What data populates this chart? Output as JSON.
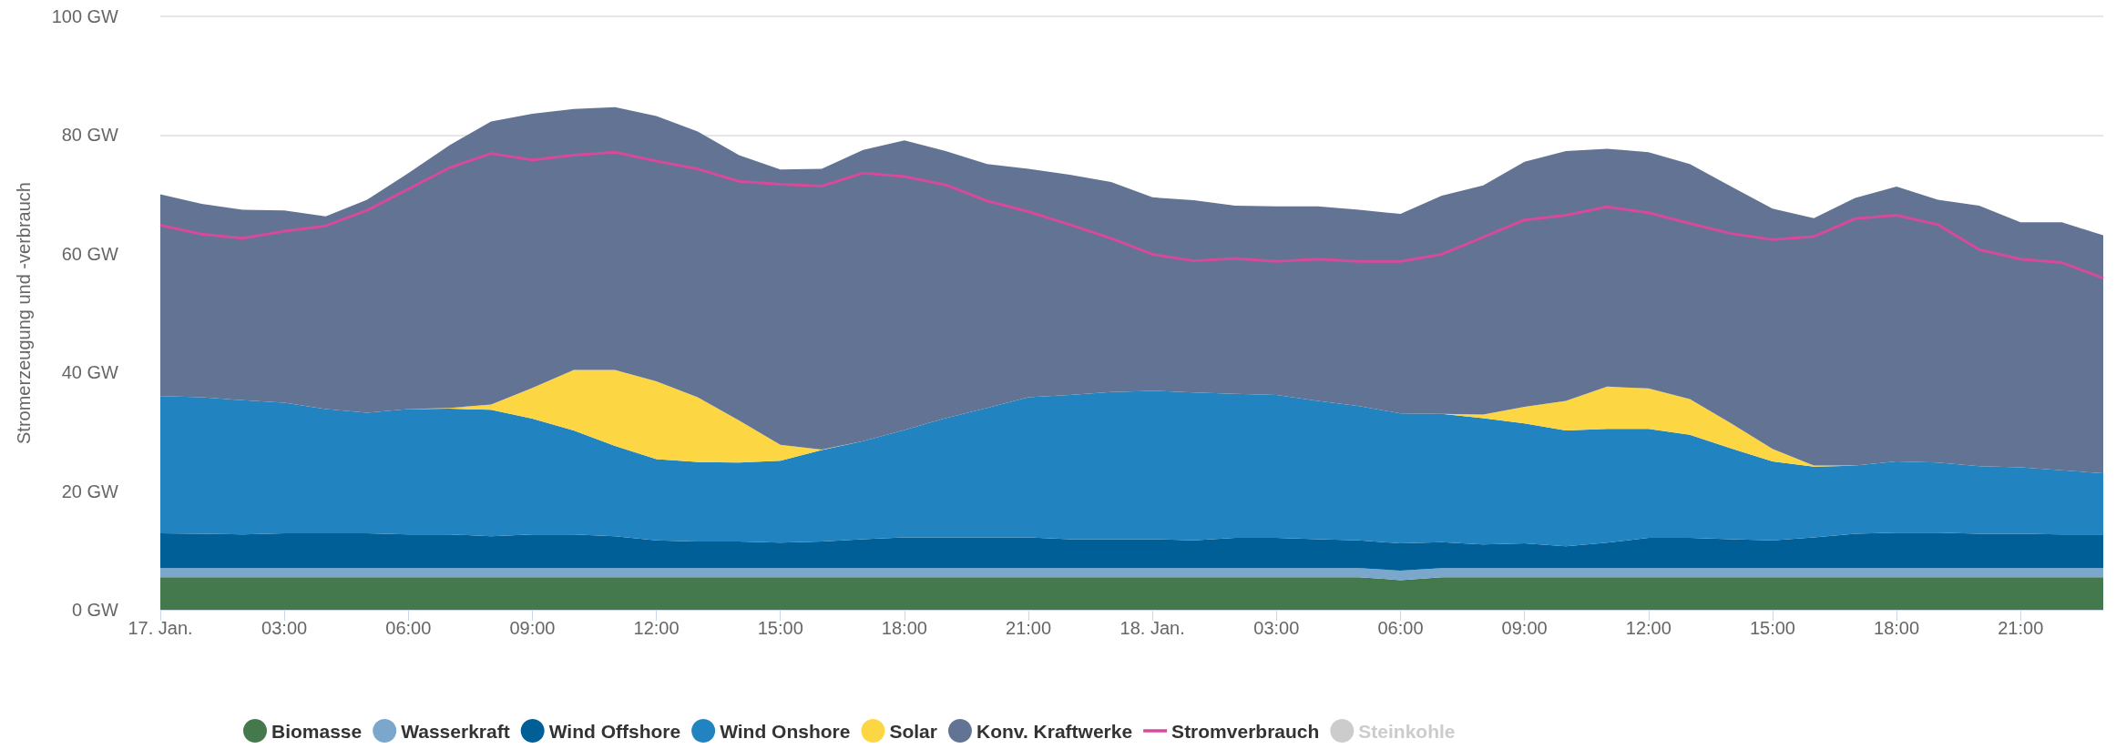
{
  "chart_data": {
    "type": "area",
    "stacked": true,
    "ylabel": "Stromerzeugung und -verbrauch",
    "categories": [
      "17. Jan.",
      null,
      null,
      "03:00",
      null,
      null,
      "06:00",
      null,
      null,
      "09:00",
      null,
      null,
      "12:00",
      null,
      null,
      "15:00",
      null,
      null,
      "18:00",
      null,
      null,
      "21:00",
      null,
      null,
      "18. Jan.",
      null,
      null,
      "03:00",
      null,
      null,
      "06:00",
      null,
      null,
      "09:00",
      null,
      null,
      "12:00",
      null,
      null,
      "15:00",
      null,
      null,
      "18:00",
      null,
      null,
      "21:00",
      null,
      null
    ],
    "ylim": [
      0,
      100
    ],
    "yticks": [
      {
        "value": 0,
        "label": "0 GW"
      },
      {
        "value": 20,
        "label": "20 GW"
      },
      {
        "value": 40,
        "label": "40 GW"
      },
      {
        "value": 60,
        "label": "60 GW"
      },
      {
        "value": 80,
        "label": "80 GW"
      },
      {
        "value": 100,
        "label": "100 GW"
      }
    ],
    "grid": "y",
    "legend": "bottom",
    "marker": "none",
    "series": [
      {
        "name": "Biomasse",
        "color": "#44784d",
        "values": [
          5.5,
          5.5,
          5.5,
          5.5,
          5.5,
          5.5,
          5.5,
          5.5,
          5.5,
          5.5,
          5.5,
          5.5,
          5.5,
          5.5,
          5.5,
          5.5,
          5.5,
          5.5,
          5.5,
          5.5,
          5.5,
          5.5,
          5.5,
          5.5,
          5.5,
          5.5,
          5.5,
          5.5,
          5.5,
          5.5,
          5.0,
          5.5,
          5.5,
          5.5,
          5.5,
          5.5,
          5.5,
          5.5,
          5.5,
          5.5,
          5.5,
          5.5,
          5.5,
          5.5,
          5.5,
          5.5,
          5.5,
          5.5
        ]
      },
      {
        "name": "Wasserkraft",
        "color": "#7ba7cd",
        "values": [
          1.5,
          1.5,
          1.5,
          1.5,
          1.5,
          1.5,
          1.5,
          1.5,
          1.5,
          1.5,
          1.5,
          1.5,
          1.5,
          1.5,
          1.5,
          1.5,
          1.5,
          1.5,
          1.5,
          1.5,
          1.5,
          1.5,
          1.5,
          1.5,
          1.5,
          1.5,
          1.5,
          1.5,
          1.5,
          1.5,
          1.6,
          1.5,
          1.5,
          1.5,
          1.5,
          1.5,
          1.5,
          1.5,
          1.5,
          1.5,
          1.5,
          1.5,
          1.5,
          1.5,
          1.5,
          1.5,
          1.5,
          1.5
        ]
      },
      {
        "name": "Wind Offshore",
        "color": "#015f98",
        "values": [
          5.9,
          5.8,
          5.7,
          5.9,
          5.9,
          5.9,
          5.7,
          5.7,
          5.4,
          5.7,
          5.7,
          5.4,
          4.7,
          4.5,
          4.5,
          4.3,
          4.5,
          4.9,
          5.2,
          5.2,
          5.2,
          5.2,
          4.9,
          4.9,
          4.9,
          4.7,
          5.1,
          5.1,
          4.9,
          4.7,
          4.6,
          4.4,
          4.0,
          4.2,
          3.7,
          4.3,
          5.1,
          5.1,
          4.9,
          4.7,
          5.2,
          5.8,
          6.0,
          6.0,
          5.8,
          5.8,
          5.7,
          5.7
        ]
      },
      {
        "name": "Wind Onshore",
        "color": "#2183c0",
        "values": [
          23.1,
          23.0,
          22.6,
          22.0,
          20.9,
          20.3,
          21.1,
          21.2,
          21.3,
          19.5,
          17.5,
          15.2,
          13.7,
          13.4,
          13.3,
          13.8,
          15.4,
          16.5,
          18.1,
          20.1,
          21.8,
          23.6,
          24.3,
          24.8,
          25.0,
          24.9,
          24.3,
          24.1,
          23.3,
          22.6,
          21.9,
          21.6,
          21.3,
          20.2,
          19.5,
          19.2,
          18.4,
          17.4,
          15.3,
          13.3,
          11.9,
          11.5,
          12.0,
          11.8,
          11.4,
          11.2,
          10.8,
          10.3
        ]
      },
      {
        "name": "Solar",
        "color": "#fdd643",
        "values": [
          0,
          0,
          0,
          0,
          0,
          0,
          0,
          0.1,
          0.9,
          5.2,
          10.2,
          12.8,
          13.1,
          10.9,
          7.1,
          2.7,
          0.1,
          0,
          0,
          0,
          0,
          0,
          0,
          0,
          0,
          0,
          0,
          0,
          0,
          0,
          0,
          0,
          0.6,
          2.8,
          5.0,
          7.1,
          6.8,
          6.0,
          4.2,
          2.1,
          0.2,
          0,
          0,
          0,
          0,
          0,
          0,
          0
        ]
      },
      {
        "name": "Konv. Kraftwerke",
        "color": "#627394",
        "values": [
          34.0,
          32.6,
          32.1,
          32.4,
          32.5,
          35.9,
          39.8,
          44.3,
          47.7,
          46.2,
          44.0,
          44.3,
          44.7,
          44.8,
          44.7,
          46.4,
          47.3,
          49.1,
          48.8,
          45.0,
          41.1,
          38.5,
          37.1,
          35.4,
          32.6,
          32.4,
          31.7,
          31.8,
          32.8,
          33.1,
          33.6,
          36.8,
          38.6,
          41.3,
          42.1,
          40.1,
          39.8,
          39.6,
          39.9,
          40.5,
          41.7,
          45.1,
          46.3,
          44.3,
          43.9,
          41.3,
          41.8,
          40.1
        ]
      },
      {
        "name": "Stromverbrauch",
        "type": "line",
        "color": "#d64a9a",
        "values": [
          64.8,
          63.3,
          62.6,
          63.8,
          64.7,
          67.3,
          70.9,
          74.5,
          76.9,
          75.8,
          76.6,
          77.1,
          75.6,
          74.3,
          72.2,
          71.7,
          71.4,
          73.6,
          73.0,
          71.6,
          68.9,
          67.1,
          64.9,
          62.6,
          59.9,
          58.8,
          59.2,
          58.7,
          59.1,
          58.7,
          58.7,
          59.9,
          62.8,
          65.7,
          66.5,
          67.9,
          66.9,
          65.1,
          63.4,
          62.4,
          62.9,
          65.9,
          66.5,
          64.9,
          60.7,
          59.1,
          58.5,
          55.9
        ]
      },
      {
        "name": "Steinkohle",
        "color": "#cccccc",
        "values": [
          null,
          null,
          null,
          null,
          null,
          null,
          null,
          null,
          null,
          null,
          null,
          null,
          null,
          null,
          null,
          null,
          null,
          null,
          null,
          null,
          null,
          null,
          null,
          null,
          null,
          null,
          null,
          null,
          null,
          null,
          null,
          null,
          null,
          null,
          null,
          null,
          null,
          null,
          null,
          null,
          null,
          null,
          null,
          null,
          null,
          null,
          null,
          null
        ]
      }
    ]
  }
}
